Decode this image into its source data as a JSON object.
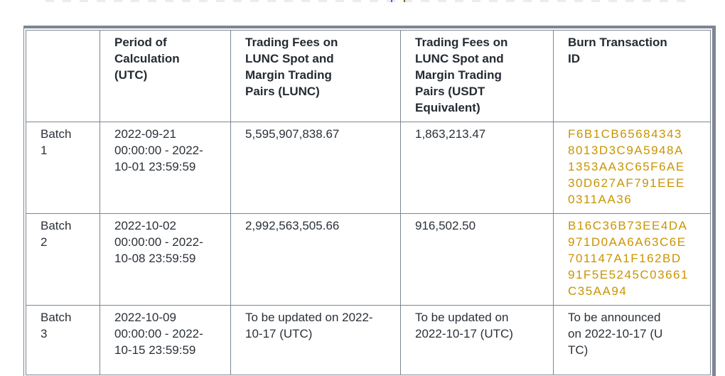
{
  "colors": {
    "background": "#ffffff",
    "border": "#7d8593",
    "text": "#2b3139",
    "link_gold": "#C99400"
  },
  "table": {
    "columns": [
      {
        "label": ""
      },
      {
        "label": "Period of Calculation (UTC)"
      },
      {
        "label": "Trading Fees on LUNC Spot and Margin Trading Pairs (LUNC)"
      },
      {
        "label": "Trading Fees on LUNC Spot and Margin Trading Pairs (USDT Equivalent)"
      },
      {
        "label": "Burn Transaction ID"
      }
    ],
    "rows": [
      {
        "batch": "Batch 1",
        "period": "2022-09-21 00:00:00 - 2022-10-01 23:59:59",
        "fees_lunc": "5,595,907,838.67",
        "fees_usdt": "1,863,213.47",
        "burn_tx_id": "F6B1CB656843438013D3C9A5948A1353AA3C65F6AE30D627AF791EEE0311AA36"
      },
      {
        "batch": "Batch 2",
        "period": "2022-10-02 00:00:00 - 2022-10-08 23:59:59",
        "fees_lunc": "2,992,563,505.66",
        "fees_usdt": "916,502.50",
        "burn_tx_id": "B16C36B73EE4DA971D0AA6A63C6E701147A1F162BD91F5E5245C03661C35AA94"
      },
      {
        "batch": "Batch 3",
        "period": "2022-10-09 00:00:00 - 2022-10-15 23:59:59",
        "fees_lunc": "To be updated on 2022-10-17 (UTC)",
        "fees_usdt": "To be updated on 2022-10-17 (UTC)",
        "burn_tx_id": "To be announced on 2022-10-17 (UTC)"
      }
    ]
  }
}
